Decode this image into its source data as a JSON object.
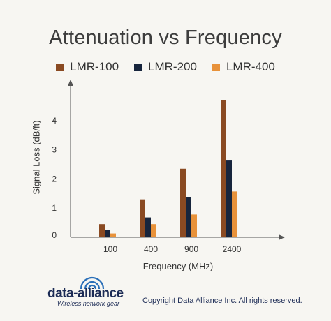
{
  "chart_data": {
    "type": "bar",
    "title": "Attenuation vs Frequency",
    "xlabel": "Frequency (MHz)",
    "ylabel": "Signal Loss (dB/ft)",
    "categories": [
      "100",
      "400",
      "900",
      "2400"
    ],
    "series": [
      {
        "name": "LMR-100",
        "color": "#8a4a22",
        "values": [
          0.45,
          1.3,
          2.35,
          4.7
        ]
      },
      {
        "name": "LMR-200",
        "color": "#17253d",
        "values": [
          0.25,
          0.68,
          1.37,
          2.63
        ]
      },
      {
        "name": "LMR-400",
        "color": "#e8923a",
        "values": [
          0.13,
          0.45,
          0.78,
          1.57
        ]
      }
    ],
    "yticks": [
      0,
      1,
      2,
      3,
      4
    ],
    "ylim": [
      0,
      5
    ],
    "grid": false,
    "legend_position": "top"
  },
  "logo": {
    "name": "data-alliance",
    "tagline": "Wireless network gear"
  },
  "copyright": "Copyright Data Alliance Inc. All rights reserved."
}
